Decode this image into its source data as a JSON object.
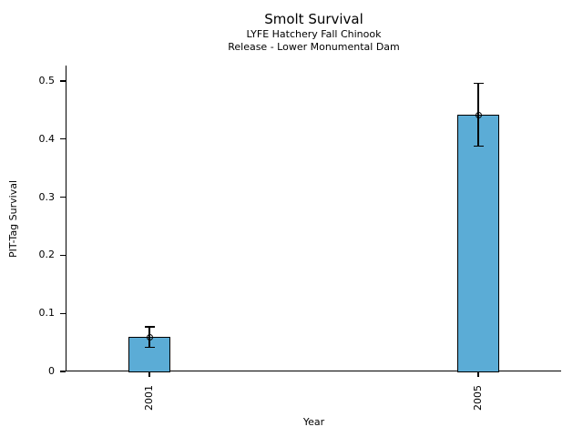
{
  "chart_data": {
    "type": "bar",
    "title": "Smolt Survival",
    "subtitle_lines": [
      "LYFE Hatchery Fall Chinook",
      "Release - Lower Monumental Dam"
    ],
    "xlabel": "Year",
    "ylabel": "PIT-Tag Survival",
    "categories": [
      "2001",
      "2005"
    ],
    "values": [
      0.059,
      0.441
    ],
    "error_low": [
      0.041,
      0.388
    ],
    "error_high": [
      0.077,
      0.496
    ],
    "yticks": [
      {
        "value": 0,
        "label": "0"
      },
      {
        "value": 0.1,
        "label": "0.1"
      },
      {
        "value": 0.2,
        "label": "0.2"
      },
      {
        "value": 0.3,
        "label": "0.3"
      },
      {
        "value": 0.4,
        "label": "0.4"
      },
      {
        "value": 0.5,
        "label": "0.5"
      }
    ],
    "ylim": [
      0,
      0.525
    ],
    "bar_color": "#5BACD6",
    "edge_color": "#000000",
    "marker": "open-circle",
    "error_bars": true,
    "grid": false,
    "legend": null,
    "background_color": "#ffffff"
  }
}
